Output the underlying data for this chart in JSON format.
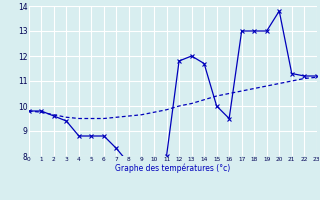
{
  "xlabel": "Graphe des températures (°c)",
  "bg_color": "#d8eef0",
  "grid_color": "#ffffff",
  "line_color": "#0000bb",
  "hours": [
    0,
    1,
    2,
    3,
    4,
    5,
    6,
    7,
    8,
    9,
    10,
    11,
    12,
    13,
    14,
    15,
    16,
    17,
    18,
    19,
    20,
    21,
    22,
    23
  ],
  "temps": [
    9.8,
    9.8,
    9.6,
    9.4,
    8.8,
    8.8,
    8.8,
    8.3,
    7.7,
    7.7,
    7.8,
    8.0,
    11.8,
    12.0,
    11.7,
    10.0,
    9.5,
    13.0,
    13.0,
    13.0,
    13.8,
    11.3,
    11.2,
    11.2
  ],
  "smooth": [
    9.8,
    9.75,
    9.65,
    9.55,
    9.5,
    9.5,
    9.5,
    9.55,
    9.6,
    9.65,
    9.75,
    9.85,
    10.0,
    10.1,
    10.25,
    10.4,
    10.5,
    10.6,
    10.7,
    10.8,
    10.9,
    11.0,
    11.1,
    11.15
  ],
  "ylim": [
    8,
    14
  ],
  "xlim": [
    0,
    23
  ],
  "yticks": [
    8,
    9,
    10,
    11,
    12,
    13,
    14
  ]
}
